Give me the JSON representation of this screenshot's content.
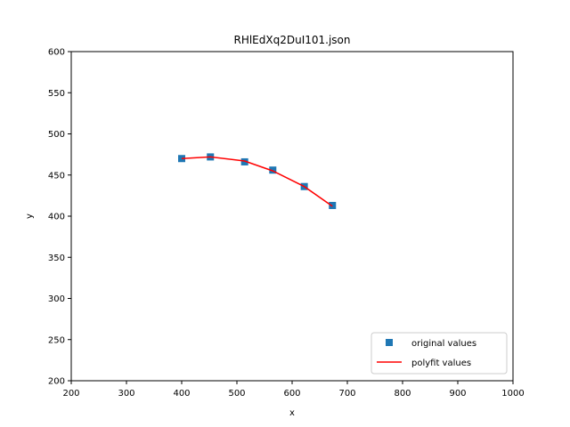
{
  "chart_data": {
    "type": "line",
    "title": "RHlEdXq2DuI101.json",
    "xlabel": "x",
    "ylabel": "y",
    "xlim": [
      200,
      1000
    ],
    "ylim": [
      200,
      600
    ],
    "xticks": [
      200,
      300,
      400,
      500,
      600,
      700,
      800,
      900,
      1000
    ],
    "yticks": [
      200,
      250,
      300,
      350,
      400,
      450,
      500,
      550,
      600
    ],
    "grid": false,
    "legend_position": "lower-right",
    "series": [
      {
        "name": "original values",
        "kind": "scatter",
        "marker": "square",
        "color": "#1f77b4",
        "x": [
          400,
          452,
          514,
          565,
          622,
          673
        ],
        "y": [
          470,
          472,
          466,
          456,
          436,
          413
        ]
      },
      {
        "name": "polyfit values",
        "kind": "line",
        "color": "#ff0000",
        "x": [
          400,
          452,
          514,
          565,
          622,
          673
        ],
        "y": [
          470,
          472,
          467,
          455,
          436,
          412
        ]
      }
    ]
  }
}
